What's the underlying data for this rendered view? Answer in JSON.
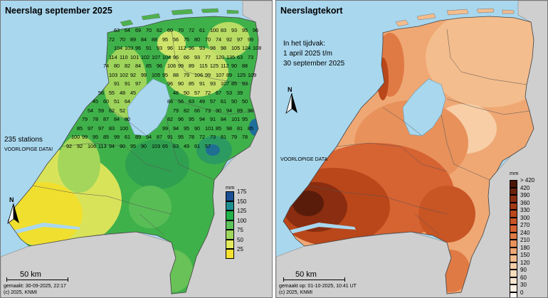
{
  "left": {
    "title": "Neerslag september 2025",
    "stations_text": "235 stations",
    "provisional": "VOORLOPIGE DATA!",
    "unit": "mm",
    "legend_labels": [
      "175",
      "150",
      "125",
      "100",
      "75",
      "50",
      "25"
    ],
    "legend_colors": [
      "#1b4f93",
      "#1e8f8f",
      "#21b24a",
      "#5dc45a",
      "#9ed75a",
      "#e3ea5c",
      "#f3e12e"
    ],
    "scale_label": "50 km",
    "made": "gemaakt: 30-09-2025, 22:17",
    "copyright": "(c) 2025, KNMI",
    "north": "N",
    "station_values": [
      "63",
      "64",
      "69",
      "70",
      "62",
      "60",
      "70",
      "72",
      "61",
      "100",
      "83",
      "93",
      "95",
      "96",
      "72",
      "70",
      "89",
      "84",
      "88",
      "95",
      "56",
      "75",
      "80",
      "70",
      "74",
      "92",
      "97",
      "99",
      "104",
      "103",
      "96",
      "91",
      "93",
      "96",
      "112",
      "96",
      "93",
      "98",
      "98",
      "105",
      "124",
      "108",
      "114",
      "110",
      "101",
      "102",
      "107",
      "104",
      "96",
      "66",
      "93",
      "77",
      "120",
      "135",
      "63",
      "73",
      "74",
      "80",
      "82",
      "84",
      "85",
      "96",
      "106",
      "99",
      "89",
      "115",
      "125",
      "112",
      "90",
      "88",
      "103",
      "102",
      "92",
      "99",
      "105",
      "95",
      "88",
      "79",
      "106",
      "99",
      "107",
      "89",
      "125",
      "109",
      "91",
      "91",
      "97",
      "96",
      "90",
      "85",
      "91",
      "93",
      "107",
      "85",
      "93",
      "56",
      "55",
      "48",
      "45",
      "48",
      "50",
      "57",
      "72",
      "67",
      "53",
      "39",
      "45",
      "60",
      "51",
      "64",
      "86",
      "56",
      "63",
      "49",
      "57",
      "61",
      "50",
      "50",
      "54",
      "59",
      "62",
      "52",
      "79",
      "82",
      "66",
      "73",
      "90",
      "94",
      "89",
      "96",
      "79",
      "78",
      "87",
      "84",
      "80",
      "82",
      "96",
      "95",
      "94",
      "91",
      "84",
      "101",
      "95",
      "85",
      "97",
      "97",
      "83",
      "100",
      "99",
      "94",
      "95",
      "90",
      "101",
      "85",
      "98",
      "81",
      "85",
      "100",
      "99",
      "95",
      "85",
      "99",
      "61",
      "89",
      "94",
      "87",
      "91",
      "95",
      "78",
      "72",
      "73",
      "81",
      "79",
      "78",
      "92",
      "92",
      "106",
      "113",
      "94",
      "90",
      "95",
      "90",
      "103",
      "65",
      "63",
      "49",
      "61",
      "57"
    ]
  },
  "right": {
    "title": "Neerslagtekort",
    "period_line1": "In het tijdvak:",
    "period_line2": "1 april 2025 t/m",
    "period_line3": "30 september 2025",
    "provisional": "VOORLOPIGE DATA",
    "unit": "mm",
    "legend_labels": [
      "> 420",
      "420",
      "390",
      "360",
      "330",
      "300",
      "270",
      "240",
      "210",
      "180",
      "150",
      "120",
      "90",
      "60",
      "30",
      "0"
    ],
    "legend_colors": [
      "#4a1608",
      "#6b220d",
      "#8a2d10",
      "#a33a14",
      "#b9471a",
      "#c85524",
      "#d66332",
      "#e07a45",
      "#e8915b",
      "#efa874",
      "#f4bd8d",
      "#f7cea6",
      "#f9dcbc",
      "#fbe7d0",
      "#fdf1e4",
      "#fffaf4"
    ],
    "scale_label": "50 km",
    "made": "gemaakt op: 01-10-2025, 10:41 UT",
    "copyright": "(c) 2025, KNMI",
    "north": "N"
  }
}
